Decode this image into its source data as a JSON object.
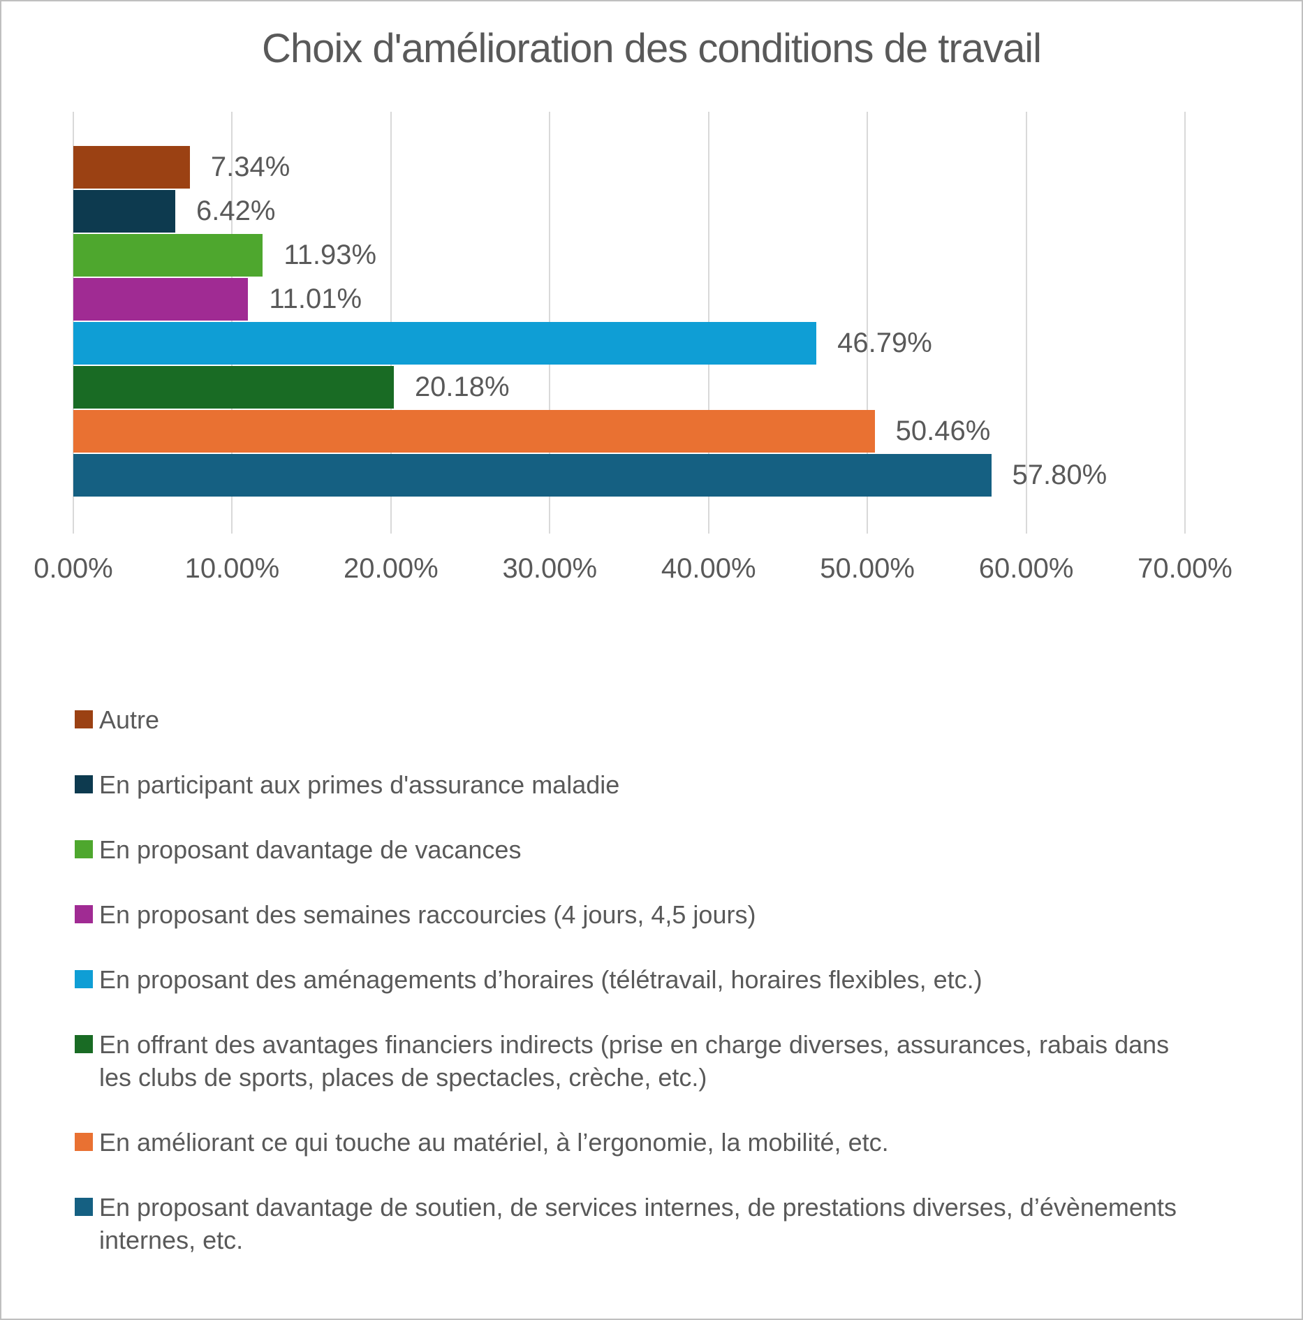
{
  "chart_data": {
    "type": "bar",
    "orientation": "horizontal",
    "title": "Choix d'amélioration des conditions de travail",
    "categories": [
      "Autre",
      "En participant aux primes d'assurance maladie",
      "En proposant davantage de vacances",
      "En proposant des semaines raccourcies (4 jours, 4,5 jours)",
      "En proposant des aménagements d’horaires (télétravail, horaires flexibles, etc.)",
      "En offrant des avantages financiers indirects (prise en charge diverses, assurances, rabais dans les clubs de sports, places de spectacles, crèche, etc.)",
      "En améliorant ce qui touche au matériel, à l’ergonomie, la mobilité, etc.",
      "En proposant davantage de soutien, de services internes, de prestations diverses, d’évènements internes, etc."
    ],
    "values": [
      7.34,
      6.42,
      11.93,
      11.01,
      46.79,
      20.18,
      50.46,
      57.8
    ],
    "value_labels": [
      "7.34%",
      "6.42%",
      "11.93%",
      "11.01%",
      "46.79%",
      "20.18%",
      "50.46%",
      "57.80%"
    ],
    "colors": [
      "#9B4113",
      "#0D3A4F",
      "#4EA72E",
      "#A02B93",
      "#0F9ED5",
      "#196B24",
      "#E97132",
      "#156082"
    ],
    "xlim": [
      0,
      70
    ],
    "x_tick_labels": [
      "0.00%",
      "10.00%",
      "20.00%",
      "30.00%",
      "40.00%",
      "50.00%",
      "60.00%",
      "70.00%"
    ],
    "gridlines": true,
    "gridline_color": "#D9D9D9",
    "text_color": "#595959",
    "legend_position": "bottom"
  }
}
